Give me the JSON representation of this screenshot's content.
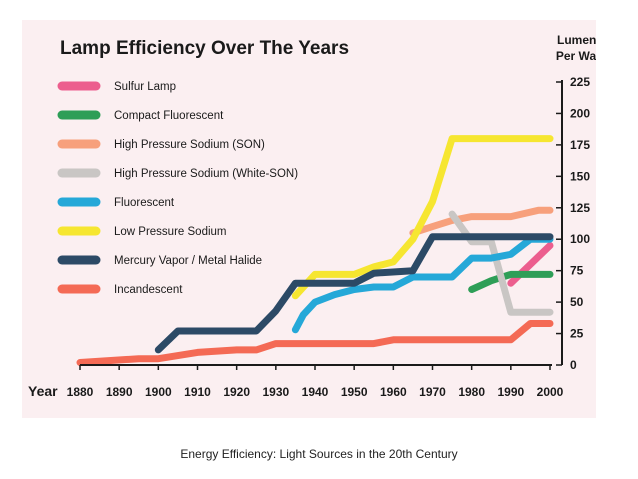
{
  "caption": "Energy Efficiency: Light Sources in the 20th Century",
  "colors": {
    "panel": "#fbeff1",
    "axis": "#1a1a1a",
    "sulfur": "#ec5e8e",
    "compact_fluorescent": "#2e9e57",
    "hps_son": "#f7a07c",
    "hps_white_son": "#c9c6c4",
    "fluorescent": "#25a8d8",
    "low_pressure_sodium": "#f6e630",
    "mercury_vapor": "#2c4a66",
    "incandescent": "#f46a55"
  },
  "chart_data": {
    "type": "line",
    "title": "Lamp Efficiency Over The Years",
    "xlabel": "Year",
    "ylabel": "Lumens Per Watt",
    "ylabel_lines": [
      "Lumens",
      "Per Watt"
    ],
    "xlim": [
      1880,
      2000
    ],
    "ylim": [
      0,
      225
    ],
    "x_ticks": [
      1880,
      1890,
      1900,
      1910,
      1920,
      1930,
      1940,
      1950,
      1960,
      1970,
      1980,
      1990,
      2000
    ],
    "y_ticks": [
      0,
      25,
      50,
      75,
      100,
      125,
      150,
      175,
      200,
      225
    ],
    "y_axis_side": "right",
    "legend_position": "top-left",
    "grid": false,
    "series": [
      {
        "name": "Sulfur Lamp",
        "color": "#ec5e8e",
        "x": [
          1990,
          1995,
          2000
        ],
        "y": [
          65,
          80,
          95
        ]
      },
      {
        "name": "Compact Fluorescent",
        "color": "#2e9e57",
        "x": [
          1980,
          1985,
          1990,
          2000
        ],
        "y": [
          60,
          67,
          72,
          72
        ]
      },
      {
        "name": "High Pressure Sodium (SON)",
        "color": "#f7a07c",
        "x": [
          1965,
          1970,
          1975,
          1980,
          1990,
          1997,
          2000
        ],
        "y": [
          105,
          110,
          115,
          118,
          118,
          123,
          123
        ]
      },
      {
        "name": "High Pressure Sodium (White-SON)",
        "color": "#c9c6c4",
        "x": [
          1975,
          1980,
          1985,
          1990,
          1990,
          2000
        ],
        "y": [
          120,
          98,
          98,
          42,
          42,
          42
        ]
      },
      {
        "name": "Fluorescent",
        "color": "#25a8d8",
        "x": [
          1935,
          1937,
          1940,
          1945,
          1950,
          1955,
          1960,
          1965,
          1970,
          1975,
          1980,
          1985,
          1990,
          1995,
          2000
        ],
        "y": [
          28,
          40,
          50,
          56,
          60,
          62,
          62,
          70,
          70,
          70,
          85,
          85,
          88,
          100,
          100
        ]
      },
      {
        "name": "Low Pressure Sodium",
        "color": "#f6e630",
        "x": [
          1935,
          1940,
          1950,
          1955,
          1960,
          1965,
          1970,
          1975,
          2000
        ],
        "y": [
          55,
          72,
          72,
          78,
          82,
          100,
          130,
          180,
          180
        ]
      },
      {
        "name": "Mercury Vapor / Metal Halide",
        "color": "#2c4a66",
        "x": [
          1900,
          1905,
          1925,
          1930,
          1935,
          1950,
          1955,
          1965,
          1970,
          2000
        ],
        "y": [
          12,
          27,
          27,
          43,
          65,
          65,
          73,
          75,
          102,
          102
        ]
      },
      {
        "name": "Incandescent",
        "color": "#f46a55",
        "x": [
          1880,
          1895,
          1900,
          1910,
          1920,
          1925,
          1930,
          1955,
          1960,
          1990,
          1995,
          2000
        ],
        "y": [
          2,
          5,
          5,
          10,
          12,
          12,
          17,
          17,
          20,
          20,
          33,
          33
        ]
      }
    ]
  }
}
